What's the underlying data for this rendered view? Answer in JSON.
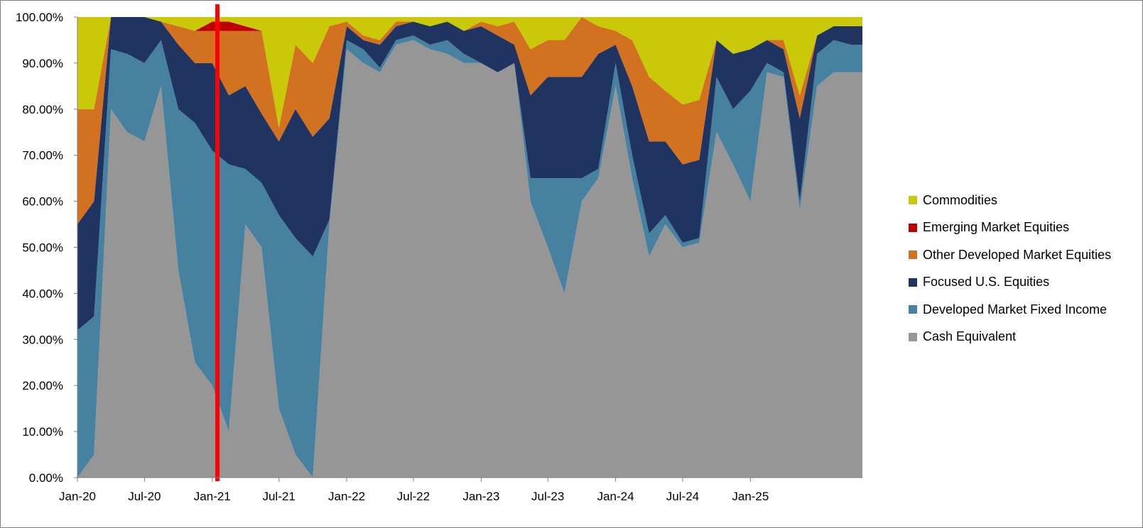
{
  "chart_data": {
    "type": "area",
    "stacked": true,
    "normalized": true,
    "title": "",
    "xlabel": "",
    "ylabel": "",
    "ylim": [
      0,
      100
    ],
    "y_ticks": [
      "0.00%",
      "10.00%",
      "20.00%",
      "30.00%",
      "40.00%",
      "50.00%",
      "60.00%",
      "70.00%",
      "80.00%",
      "90.00%",
      "100.00%"
    ],
    "x_ticks": [
      "Jan-20",
      "Jul-20",
      "Jan-21",
      "Jul-21",
      "Jan-22",
      "Jul-22",
      "Jan-23",
      "Jul-23",
      "Jan-24",
      "Jul-24",
      "Jan-25"
    ],
    "x_range": [
      "2020-01-01",
      "2025-11-01"
    ],
    "marker_line": {
      "x": "2021-01-15",
      "color": "#ff0000"
    },
    "grid": false,
    "legend_position": "right",
    "x": [
      "2020-01-01",
      "2020-02-15",
      "2020-04-01",
      "2020-05-15",
      "2020-07-01",
      "2020-08-15",
      "2020-10-01",
      "2020-11-15",
      "2021-01-01",
      "2021-02-15",
      "2021-04-01",
      "2021-05-15",
      "2021-07-01",
      "2021-08-15",
      "2021-10-01",
      "2021-11-15",
      "2022-01-01",
      "2022-02-15",
      "2022-04-01",
      "2022-05-15",
      "2022-07-01",
      "2022-08-15",
      "2022-10-01",
      "2022-11-15",
      "2023-01-01",
      "2023-02-15",
      "2023-04-01",
      "2023-05-15",
      "2023-07-01",
      "2023-08-15",
      "2023-10-01",
      "2023-11-15",
      "2024-01-01",
      "2024-02-15",
      "2024-04-01",
      "2024-05-15",
      "2024-07-01",
      "2024-08-15",
      "2024-10-01",
      "2024-11-15",
      "2025-01-01",
      "2025-02-15",
      "2025-04-01",
      "2025-05-15",
      "2025-07-01",
      "2025-08-15",
      "2025-10-01",
      "2025-11-01"
    ],
    "series": [
      {
        "name": "Cash Equivalent",
        "color": "#969696",
        "values": [
          0,
          5,
          80,
          75,
          73,
          85,
          45,
          25,
          20,
          10,
          55,
          50,
          15,
          5,
          0,
          55,
          93,
          90,
          88,
          94,
          95,
          93,
          92,
          90,
          90,
          88,
          90,
          60,
          50,
          40,
          60,
          65,
          85,
          65,
          48,
          55,
          50,
          51,
          75,
          68,
          60,
          88,
          87,
          58,
          85,
          88,
          88,
          88
        ]
      },
      {
        "name": "Developed Market Fixed Income",
        "color": "#4682a0",
        "values": [
          32,
          30,
          13,
          17,
          17,
          10,
          35,
          52,
          51,
          58,
          12,
          14,
          42,
          47,
          48,
          1,
          2,
          3,
          1,
          1,
          1,
          1,
          3,
          2,
          0,
          0,
          0,
          5,
          15,
          25,
          5,
          2,
          5,
          5,
          5,
          2,
          1,
          1,
          12,
          12,
          24,
          2,
          1,
          2,
          7,
          7,
          6,
          6
        ]
      },
      {
        "name": "Focused U.S. Equities",
        "color": "#1f3461",
        "values": [
          23,
          25,
          7,
          8,
          10,
          4,
          14,
          13,
          19,
          15,
          18,
          15,
          16,
          28,
          26,
          22,
          3,
          2,
          5,
          3,
          3,
          4,
          4,
          5,
          8,
          8,
          4,
          18,
          22,
          22,
          22,
          25,
          4,
          15,
          20,
          16,
          17,
          17,
          8,
          12,
          9,
          5,
          5,
          18,
          4,
          3,
          4,
          4
        ]
      },
      {
        "name": "Other Developed Market Equities",
        "color": "#d2711f",
        "values": [
          25,
          20,
          0,
          0,
          0,
          0,
          4,
          7,
          7,
          14,
          12,
          18,
          3,
          14,
          16,
          20,
          1,
          1,
          1,
          1,
          0,
          0,
          0,
          0,
          1,
          2,
          5,
          10,
          8,
          8,
          13,
          6,
          3,
          10,
          14,
          11,
          13,
          13,
          0,
          0,
          0,
          0,
          2,
          5,
          0,
          0,
          0,
          0
        ]
      },
      {
        "name": "Emerging Market Equities",
        "color": "#c00000",
        "values": [
          0,
          0,
          0,
          0,
          0,
          0,
          0,
          0,
          2,
          2,
          1,
          0,
          0,
          0,
          0,
          0,
          0,
          0,
          0,
          0,
          0,
          0,
          0,
          0,
          0,
          0,
          0,
          0,
          0,
          0,
          0,
          0,
          0,
          0,
          0,
          0,
          0,
          0,
          0,
          0,
          0,
          0,
          0,
          0,
          0,
          0,
          0,
          0
        ]
      },
      {
        "name": "Commodities",
        "color": "#c9c90a",
        "values": [
          20,
          20,
          0,
          0,
          0,
          1,
          2,
          3,
          1,
          1,
          2,
          3,
          24,
          6,
          10,
          2,
          1,
          4,
          5,
          1,
          1,
          2,
          1,
          3,
          1,
          2,
          1,
          7,
          5,
          5,
          0,
          2,
          3,
          5,
          13,
          16,
          19,
          18,
          5,
          8,
          7,
          5,
          5,
          17,
          4,
          2,
          2,
          2
        ]
      }
    ]
  }
}
